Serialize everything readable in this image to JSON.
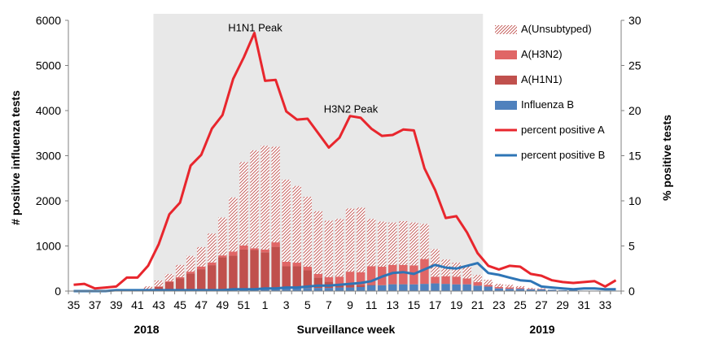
{
  "chart_data": {
    "type": "bar",
    "stacked": true,
    "x_label": "Surveillance  week",
    "y_left_label": "# positive influenza tests",
    "y_right_label": "% positive tests",
    "y_left_lim": [
      0,
      6000
    ],
    "y_right_lim": [
      0,
      30
    ],
    "y_left_ticks": [
      "0",
      "1000",
      "2000",
      "3000",
      "4000",
      "5000",
      "6000"
    ],
    "y_right_ticks": [
      "0",
      "5",
      "10",
      "15",
      "20",
      "25",
      "30"
    ],
    "x_tick_labels": [
      "35",
      "37",
      "39",
      "41",
      "43",
      "45",
      "47",
      "49",
      "51",
      "1",
      "3",
      "5",
      "7",
      "9",
      "11",
      "13",
      "15",
      "17",
      "19",
      "21",
      "23",
      "25",
      "27",
      "29",
      "31",
      "33"
    ],
    "year_labels": [
      "2018",
      "2019"
    ],
    "weeks": [
      "35",
      "36",
      "37",
      "38",
      "39",
      "40",
      "41",
      "42",
      "43",
      "44",
      "45",
      "46",
      "47",
      "48",
      "49",
      "50",
      "51",
      "52",
      "1",
      "2",
      "3",
      "4",
      "5",
      "6",
      "7",
      "8",
      "9",
      "10",
      "11",
      "12",
      "13",
      "14",
      "15",
      "16",
      "17",
      "18",
      "19",
      "20",
      "21",
      "22",
      "23",
      "24",
      "25",
      "26",
      "27",
      "28",
      "29",
      "30",
      "31",
      "32",
      "33",
      "34"
    ],
    "shaded_region": {
      "from_week": "43",
      "to_week": "21"
    },
    "annotations": [
      {
        "text": "H1N1 Peak",
        "week": "52",
        "value_pct": 29.5
      },
      {
        "text": "H3N2 Peak",
        "week": "9",
        "value_pct": 20.5
      }
    ],
    "legend_position": "right",
    "series": [
      {
        "name": "A(Unsubtyped)",
        "kind": "bar",
        "pattern": "hatch",
        "color": "#d99694",
        "values": [
          0,
          0,
          0,
          0,
          0,
          0,
          0,
          60,
          130,
          160,
          270,
          350,
          430,
          640,
          840,
          1200,
          1850,
          2170,
          2300,
          2120,
          1820,
          1700,
          1550,
          1390,
          1250,
          1280,
          1400,
          1430,
          1050,
          1000,
          940,
          970,
          950,
          780,
          610,
          370,
          310,
          270,
          160,
          110,
          70,
          60,
          40,
          20,
          10,
          0,
          0,
          0,
          0,
          0,
          0,
          0
        ]
      },
      {
        "name": "A(H3N2)",
        "kind": "bar",
        "color": "#e06666",
        "values": [
          0,
          0,
          0,
          0,
          0,
          0,
          0,
          0,
          10,
          20,
          30,
          40,
          60,
          60,
          40,
          90,
          90,
          40,
          60,
          100,
          100,
          80,
          80,
          80,
          100,
          170,
          250,
          280,
          400,
          400,
          420,
          420,
          420,
          550,
          150,
          170,
          170,
          130,
          80,
          40,
          30,
          30,
          20,
          10,
          10,
          0,
          0,
          0,
          0,
          0,
          0,
          0
        ]
      },
      {
        "name": "A(H1N1)",
        "kind": "bar",
        "color": "#c0504d",
        "values": [
          0,
          0,
          0,
          0,
          0,
          0,
          0,
          30,
          80,
          180,
          260,
          370,
          460,
          550,
          720,
          750,
          880,
          870,
          820,
          920,
          490,
          480,
          390,
          230,
          140,
          70,
          100,
          50,
          20,
          10,
          10,
          10,
          0,
          0,
          0,
          0,
          0,
          0,
          0,
          0,
          0,
          0,
          0,
          0,
          0,
          0,
          0,
          0,
          0,
          0,
          0,
          0
        ]
      },
      {
        "name": "Influenza B",
        "kind": "bar",
        "color": "#4f81bd",
        "values": [
          5,
          5,
          5,
          5,
          10,
          10,
          15,
          15,
          15,
          20,
          20,
          20,
          25,
          25,
          30,
          35,
          40,
          40,
          40,
          60,
          60,
          70,
          70,
          70,
          70,
          80,
          80,
          90,
          130,
          130,
          150,
          150,
          150,
          160,
          170,
          160,
          150,
          150,
          120,
          100,
          60,
          50,
          50,
          40,
          40,
          30,
          20,
          20,
          10,
          10,
          10,
          10
        ]
      },
      {
        "name": "percent positive A",
        "kind": "line",
        "color": "#e8262d",
        "values": [
          0.7,
          0.8,
          0.3,
          0.4,
          0.5,
          1.5,
          1.5,
          2.8,
          5.2,
          8.5,
          9.8,
          13.9,
          15.1,
          18.0,
          19.5,
          23.5,
          25.9,
          28.6,
          23.3,
          23.4,
          19.9,
          19.0,
          19.1,
          17.5,
          15.9,
          17.0,
          19.4,
          19.2,
          18.0,
          17.2,
          17.3,
          17.9,
          17.8,
          13.6,
          11.2,
          8.1,
          8.3,
          6.5,
          4.2,
          2.8,
          2.4,
          2.8,
          2.7,
          1.9,
          1.7,
          1.2,
          1.0,
          0.9,
          1.0,
          1.1,
          0.5,
          1.2
        ]
      },
      {
        "name": "percent positive B",
        "kind": "line",
        "color": "#2e75b6",
        "values": [
          0.0,
          0.0,
          0.0,
          0.0,
          0.1,
          0.1,
          0.1,
          0.1,
          0.1,
          0.1,
          0.1,
          0.1,
          0.1,
          0.1,
          0.1,
          0.2,
          0.2,
          0.2,
          0.3,
          0.3,
          0.4,
          0.4,
          0.5,
          0.6,
          0.6,
          0.7,
          0.8,
          0.9,
          1.1,
          1.6,
          2.0,
          2.1,
          1.9,
          2.4,
          2.9,
          2.6,
          2.5,
          2.8,
          3.1,
          2.0,
          1.8,
          1.5,
          1.2,
          1.1,
          0.5,
          0.4,
          0.3,
          0.2,
          0.3,
          0.3,
          0.2,
          0.2
        ]
      }
    ]
  }
}
